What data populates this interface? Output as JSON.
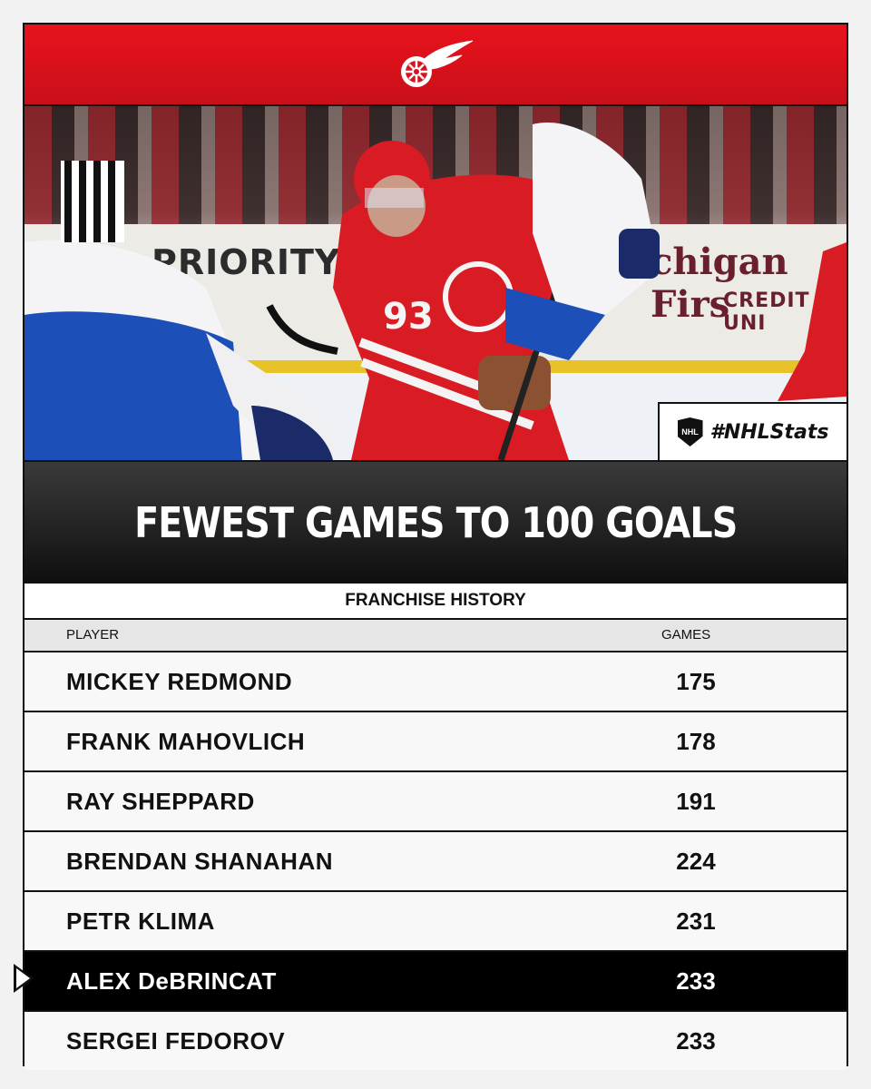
{
  "header": {
    "logo_icon": "red-wings-logo-icon",
    "brand_color": "#d7141d"
  },
  "photo": {
    "board_left": "PRIORITY",
    "board_right": "chigan Firs",
    "board_right_sub": "CREDIT UNI",
    "badge": {
      "icon": "nhl-shield-icon",
      "tag": "#NHLStats"
    }
  },
  "title": "FEWEST GAMES TO 100 GOALS",
  "subtitle": "FRANCHISE HISTORY",
  "table": {
    "headers": {
      "player": "PLAYER",
      "games": "GAMES"
    },
    "rows": [
      {
        "player": "MICKEY REDMOND",
        "games": "175"
      },
      {
        "player": "FRANK MAHOVLICH",
        "games": "178"
      },
      {
        "player": "RAY SHEPPARD",
        "games": "191"
      },
      {
        "player": "BRENDAN SHANAHAN",
        "games": "224"
      },
      {
        "player": "PETR KLIMA",
        "games": "231"
      },
      {
        "player": "ALEX DeBRINCAT",
        "games": "233"
      },
      {
        "player": "SERGEI FEDOROV",
        "games": "233"
      }
    ],
    "highlight_color": "#000000"
  }
}
